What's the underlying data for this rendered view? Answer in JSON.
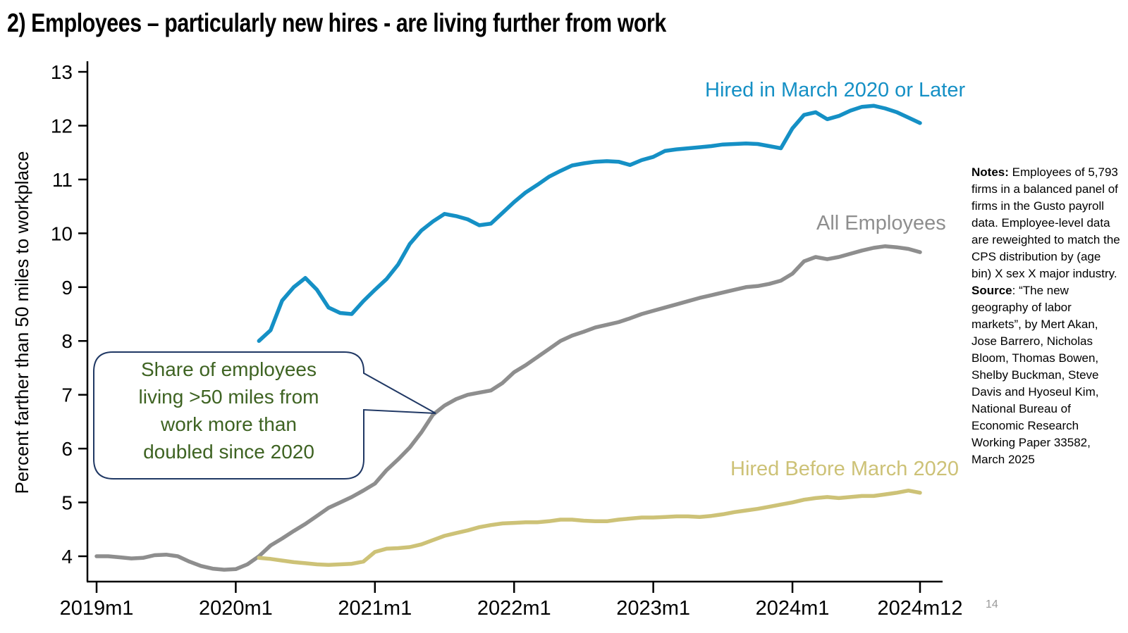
{
  "title": "2) Employees – particularly new hires - are living further from work",
  "page_number": "14",
  "chart_data": {
    "type": "line",
    "x_axis": {
      "unit": "month",
      "tick_labels": [
        "2019m1",
        "2020m1",
        "2021m1",
        "2022m1",
        "2023m1",
        "2024m1",
        "2024m12"
      ],
      "range": [
        "2019m1",
        "2024m12"
      ]
    },
    "y_axis": {
      "label": "Percent farther than 50 miles to workplace",
      "ticks": [
        4,
        5,
        6,
        7,
        8,
        9,
        10,
        11,
        12,
        13
      ],
      "range": [
        3.6,
        13.2
      ]
    },
    "grid": false,
    "legend_position": "inline-labels",
    "series": [
      {
        "name": "Hired in March 2020 or Later",
        "color": "#1590C5",
        "start": "2020m3",
        "values": [
          8.0,
          8.2,
          8.75,
          9.0,
          9.17,
          8.95,
          8.62,
          8.52,
          8.5,
          8.74,
          8.95,
          9.15,
          9.42,
          9.8,
          10.05,
          10.22,
          10.36,
          10.32,
          10.26,
          10.15,
          10.18,
          10.38,
          10.58,
          10.76,
          10.9,
          11.05,
          11.16,
          11.26,
          11.3,
          11.33,
          11.34,
          11.33,
          11.27,
          11.36,
          11.42,
          11.53,
          11.56,
          11.58,
          11.6,
          11.62,
          11.65,
          11.66,
          11.67,
          11.66,
          11.62,
          11.58,
          11.95,
          12.2,
          12.25,
          12.12,
          12.18,
          12.28,
          12.35,
          12.37,
          12.32,
          12.25,
          12.15,
          12.05
        ]
      },
      {
        "name": "All Employees",
        "color": "#8E8E8E",
        "start": "2019m1",
        "values": [
          4.0,
          4.0,
          3.98,
          3.96,
          3.97,
          4.02,
          4.03,
          4.0,
          3.9,
          3.82,
          3.77,
          3.75,
          3.76,
          3.85,
          4.0,
          4.2,
          4.33,
          4.47,
          4.6,
          4.75,
          4.9,
          5.0,
          5.1,
          5.22,
          5.35,
          5.6,
          5.8,
          6.02,
          6.3,
          6.63,
          6.8,
          6.92,
          7.0,
          7.04,
          7.08,
          7.22,
          7.42,
          7.55,
          7.7,
          7.85,
          8.0,
          8.1,
          8.17,
          8.25,
          8.3,
          8.35,
          8.42,
          8.5,
          8.56,
          8.62,
          8.68,
          8.74,
          8.8,
          8.85,
          8.9,
          8.95,
          9.0,
          9.02,
          9.06,
          9.12,
          9.25,
          9.48,
          9.56,
          9.52,
          9.56,
          9.62,
          9.68,
          9.73,
          9.76,
          9.74,
          9.71,
          9.65
        ]
      },
      {
        "name": "Hired Before March 2020",
        "color": "#CDC277",
        "start": "2020m3",
        "values": [
          3.97,
          3.95,
          3.92,
          3.89,
          3.87,
          3.85,
          3.84,
          3.85,
          3.86,
          3.9,
          4.08,
          4.14,
          4.15,
          4.17,
          4.22,
          4.3,
          4.38,
          4.43,
          4.48,
          4.54,
          4.58,
          4.61,
          4.62,
          4.63,
          4.63,
          4.65,
          4.68,
          4.68,
          4.66,
          4.65,
          4.65,
          4.68,
          4.7,
          4.72,
          4.72,
          4.73,
          4.74,
          4.74,
          4.73,
          4.75,
          4.78,
          4.82,
          4.85,
          4.88,
          4.92,
          4.96,
          5.0,
          5.05,
          5.08,
          5.1,
          5.08,
          5.1,
          5.12,
          5.12,
          5.15,
          5.18,
          5.22,
          5.18
        ]
      }
    ],
    "annotation": {
      "lines": [
        "Share of employees",
        "living >50 miles from",
        "work more than",
        "doubled since 2020"
      ],
      "text_color": "#3E6322",
      "border_color": "#203864"
    }
  },
  "notes": {
    "notes_label": "Notes:",
    "notes_body": " Employees of 5,793 firms in a balanced panel of firms in the Gusto payroll data. Employee-level data are reweighted to match the CPS distribution by (age bin) X sex X major industry. ",
    "source_label": "Source",
    "source_body": ": “The new geography of labor markets”, by Mert Akan, Jose Barrero, Nicholas Bloom, Thomas Bowen, Shelby Buckman, Steve Davis and Hyoseul Kim, National Bureau of Economic Research Working Paper 33582, March 2025"
  }
}
